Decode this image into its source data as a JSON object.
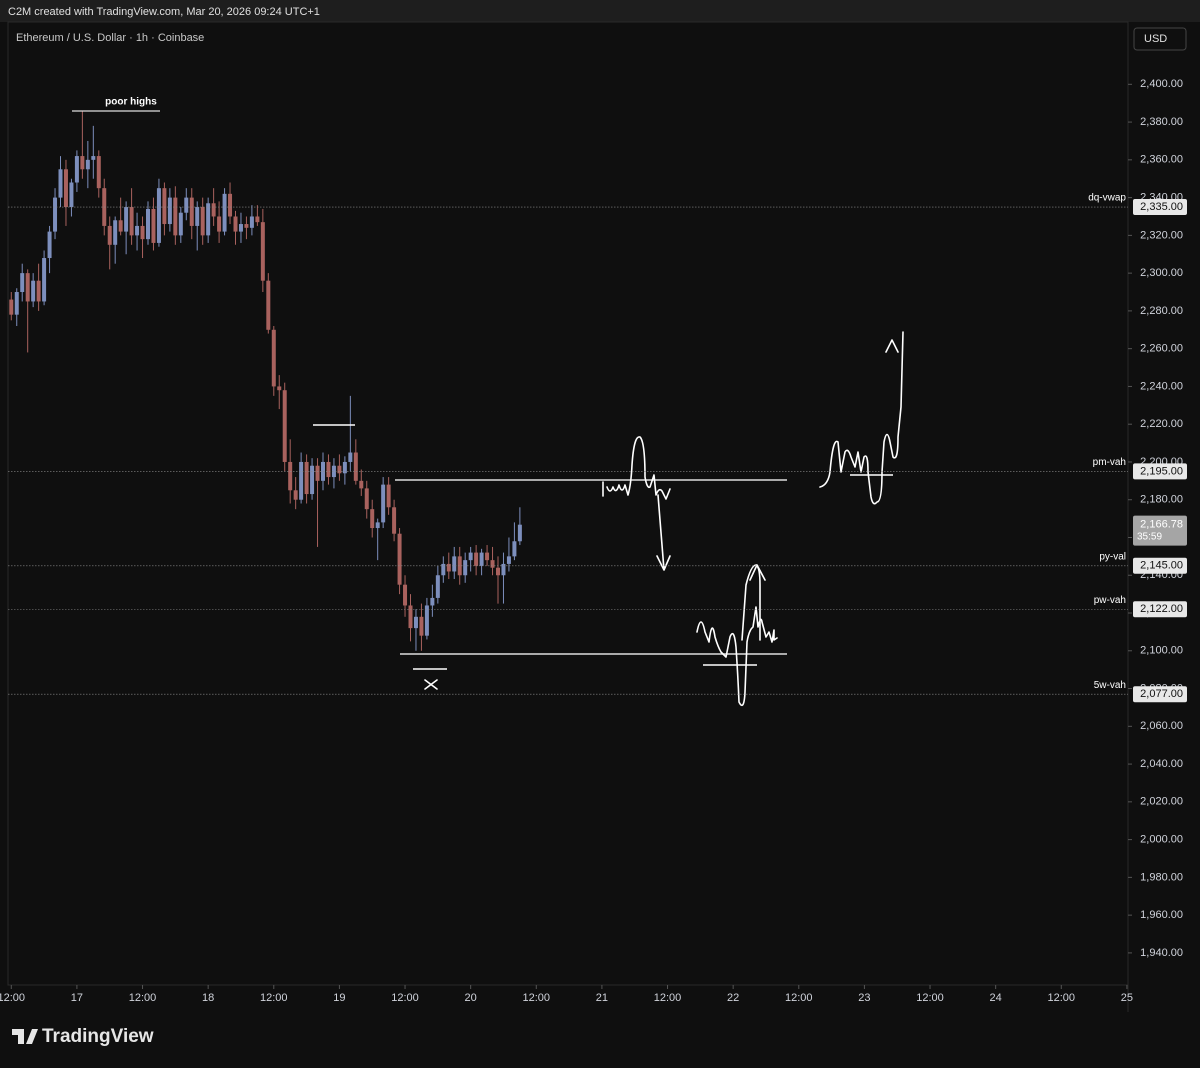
{
  "chart_data": {
    "type": "candlestick",
    "header": "C2M created with TradingView.com, Mar 20, 2026 09:24 UTC+1",
    "title": "Ethereum / U.S. Dollar · 1h · Coinbase",
    "currency": "USD",
    "brand": "TradingView",
    "annotation": "poor highs",
    "up_color": "#7d8fbd",
    "down_color": "#a9625e",
    "x": [
      -12,
      -11,
      -10,
      -9,
      -8,
      -7,
      -6,
      -5,
      -4,
      -3,
      -2,
      -1,
      0,
      1,
      2,
      3,
      4,
      5,
      6,
      7,
      8,
      9,
      10,
      11,
      12,
      13,
      14,
      15,
      16,
      17,
      18,
      19,
      20,
      21,
      22,
      23,
      24,
      25,
      26,
      27,
      28,
      29,
      30,
      31,
      32,
      33,
      34,
      35,
      36,
      37,
      38,
      39,
      40,
      41,
      42,
      43,
      44,
      45,
      46,
      47,
      48,
      49,
      50,
      51,
      52,
      53,
      54,
      55,
      56,
      57,
      58,
      59,
      60,
      61,
      62,
      63,
      64,
      65,
      66,
      67,
      68,
      69,
      70,
      71,
      72,
      73,
      74,
      75,
      76,
      77,
      78,
      79,
      80,
      81
    ],
    "open": [
      2286,
      2278,
      2290,
      2300,
      2285,
      2296,
      2285,
      2308,
      2322,
      2340,
      2355,
      2335,
      2348,
      2362,
      2355,
      2360,
      2362,
      2345,
      2325,
      2315,
      2328,
      2322,
      2335,
      2320,
      2325,
      2318,
      2334,
      2316,
      2345,
      2326,
      2340,
      2320,
      2332,
      2340,
      2325,
      2335,
      2320,
      2337,
      2330,
      2322,
      2342,
      2330,
      2322,
      2326,
      2324,
      2330,
      2327,
      2296,
      2270,
      2240,
      2238,
      2200,
      2185,
      2180,
      2200,
      2183,
      2198,
      2190,
      2200,
      2192,
      2198,
      2194,
      2200,
      2205,
      2190,
      2186,
      2175,
      2165,
      2168,
      2188,
      2176,
      2162,
      2135,
      2124,
      2112,
      2118,
      2108,
      2124,
      2128,
      2140,
      2146,
      2142,
      2150,
      2140,
      2148,
      2152,
      2145,
      2152,
      2148,
      2144,
      2140,
      2146,
      2150,
      2158
    ],
    "high": [
      2290,
      2292,
      2305,
      2302,
      2300,
      2305,
      2312,
      2325,
      2345,
      2362,
      2360,
      2350,
      2365,
      2386,
      2370,
      2378,
      2365,
      2350,
      2330,
      2330,
      2340,
      2338,
      2345,
      2332,
      2330,
      2338,
      2340,
      2350,
      2348,
      2345,
      2346,
      2335,
      2345,
      2345,
      2338,
      2340,
      2340,
      2345,
      2338,
      2345,
      2348,
      2333,
      2332,
      2330,
      2336,
      2336,
      2334,
      2300,
      2272,
      2246,
      2242,
      2212,
      2192,
      2205,
      2204,
      2202,
      2202,
      2205,
      2204,
      2202,
      2204,
      2203,
      2235,
      2212,
      2196,
      2190,
      2180,
      2170,
      2192,
      2192,
      2180,
      2165,
      2140,
      2130,
      2122,
      2125,
      2128,
      2135,
      2145,
      2150,
      2152,
      2155,
      2155,
      2152,
      2155,
      2156,
      2154,
      2156,
      2155,
      2150,
      2152,
      2160,
      2168,
      2176
    ],
    "low": [
      2275,
      2272,
      2285,
      2258,
      2282,
      2280,
      2283,
      2300,
      2318,
      2335,
      2325,
      2330,
      2343,
      2350,
      2345,
      2350,
      2340,
      2320,
      2302,
      2305,
      2320,
      2310,
      2315,
      2312,
      2308,
      2315,
      2312,
      2314,
      2320,
      2322,
      2315,
      2316,
      2328,
      2318,
      2312,
      2315,
      2316,
      2325,
      2316,
      2320,
      2326,
      2315,
      2316,
      2318,
      2320,
      2325,
      2290,
      2268,
      2235,
      2228,
      2195,
      2178,
      2175,
      2178,
      2178,
      2180,
      2155,
      2185,
      2188,
      2186,
      2190,
      2188,
      2195,
      2188,
      2182,
      2170,
      2160,
      2148,
      2165,
      2172,
      2158,
      2130,
      2118,
      2105,
      2100,
      2100,
      2106,
      2118,
      2125,
      2136,
      2138,
      2138,
      2135,
      2136,
      2142,
      2140,
      2140,
      2145,
      2140,
      2125,
      2125,
      2142,
      2148,
      2156
    ],
    "close": [
      2278,
      2290,
      2300,
      2285,
      2296,
      2285,
      2308,
      2322,
      2340,
      2355,
      2335,
      2348,
      2362,
      2355,
      2360,
      2362,
      2345,
      2325,
      2315,
      2328,
      2322,
      2335,
      2320,
      2325,
      2318,
      2334,
      2316,
      2345,
      2326,
      2340,
      2320,
      2332,
      2340,
      2325,
      2335,
      2320,
      2337,
      2330,
      2322,
      2342,
      2330,
      2322,
      2326,
      2324,
      2330,
      2327,
      2296,
      2270,
      2240,
      2238,
      2200,
      2185,
      2180,
      2200,
      2183,
      2198,
      2190,
      2200,
      2192,
      2198,
      2194,
      2200,
      2205,
      2190,
      2186,
      2175,
      2165,
      2168,
      2188,
      2176,
      2162,
      2135,
      2124,
      2112,
      2118,
      2108,
      2124,
      2128,
      2140,
      2146,
      2142,
      2150,
      2140,
      2148,
      2152,
      2145,
      2152,
      2148,
      2144,
      2140,
      2146,
      2150,
      2158,
      2166.78
    ],
    "xlim": [
      -12.6,
      192.2
    ],
    "xticks": [
      {
        "value": -12,
        "label": "12:00"
      },
      {
        "value": 0,
        "label": "17"
      },
      {
        "value": 12,
        "label": "12:00"
      },
      {
        "value": 24,
        "label": "18"
      },
      {
        "value": 36,
        "label": "12:00"
      },
      {
        "value": 48,
        "label": "19"
      },
      {
        "value": 60,
        "label": "12:00"
      },
      {
        "value": 72,
        "label": "20"
      },
      {
        "value": 84,
        "label": "12:00"
      },
      {
        "value": 96,
        "label": "21"
      },
      {
        "value": 108,
        "label": "12:00"
      },
      {
        "value": 120,
        "label": "22"
      },
      {
        "value": 132,
        "label": "12:00"
      },
      {
        "value": 144,
        "label": "23"
      },
      {
        "value": 156,
        "label": "12:00"
      },
      {
        "value": 168,
        "label": "24"
      },
      {
        "value": 180,
        "label": "12:00"
      },
      {
        "value": 192,
        "label": "25"
      }
    ],
    "ylim": [
      1923,
      2433
    ],
    "yticks": [
      {
        "value": 1940,
        "label": "1,940.00"
      },
      {
        "value": 1960,
        "label": "1,960.00"
      },
      {
        "value": 1980,
        "label": "1,980.00"
      },
      {
        "value": 2000,
        "label": "2,000.00"
      },
      {
        "value": 2020,
        "label": "2,020.00"
      },
      {
        "value": 2040,
        "label": "2,040.00"
      },
      {
        "value": 2060,
        "label": "2,060.00"
      },
      {
        "value": 2080,
        "label": "2,080.00"
      },
      {
        "value": 2100,
        "label": "2,100.00"
      },
      {
        "value": 2120,
        "label": "2,120.00"
      },
      {
        "value": 2140,
        "label": "2,140.00"
      },
      {
        "value": 2160,
        "label": "2,160.00"
      },
      {
        "value": 2180,
        "label": "2,180.00"
      },
      {
        "value": 2200,
        "label": "2,200.00"
      },
      {
        "value": 2220,
        "label": "2,220.00"
      },
      {
        "value": 2240,
        "label": "2,240.00"
      },
      {
        "value": 2260,
        "label": "2,260.00"
      },
      {
        "value": 2280,
        "label": "2,280.00"
      },
      {
        "value": 2300,
        "label": "2,300.00"
      },
      {
        "value": 2320,
        "label": "2,320.00"
      },
      {
        "value": 2340,
        "label": "2,340.00"
      },
      {
        "value": 2360,
        "label": "2,360.00"
      },
      {
        "value": 2380,
        "label": "2,380.00"
      },
      {
        "value": 2400,
        "label": "2,400.00"
      }
    ],
    "levels": [
      {
        "name": "dq-vwap",
        "value": 2335,
        "value_label": "2,335.00"
      },
      {
        "name": "pm-vah",
        "value": 2195,
        "value_label": "2,195.00"
      },
      {
        "name": "py-val",
        "value": 2145,
        "value_label": "2,145.00"
      },
      {
        "name": "pw-vah",
        "value": 2122,
        "value_label": "2,122.00"
      },
      {
        "name": "5w-vah",
        "value": 2077,
        "value_label": "2,077.00"
      }
    ],
    "last_price": {
      "value": 2166.78,
      "label": "2,166.78",
      "countdown": "35:59"
    }
  }
}
